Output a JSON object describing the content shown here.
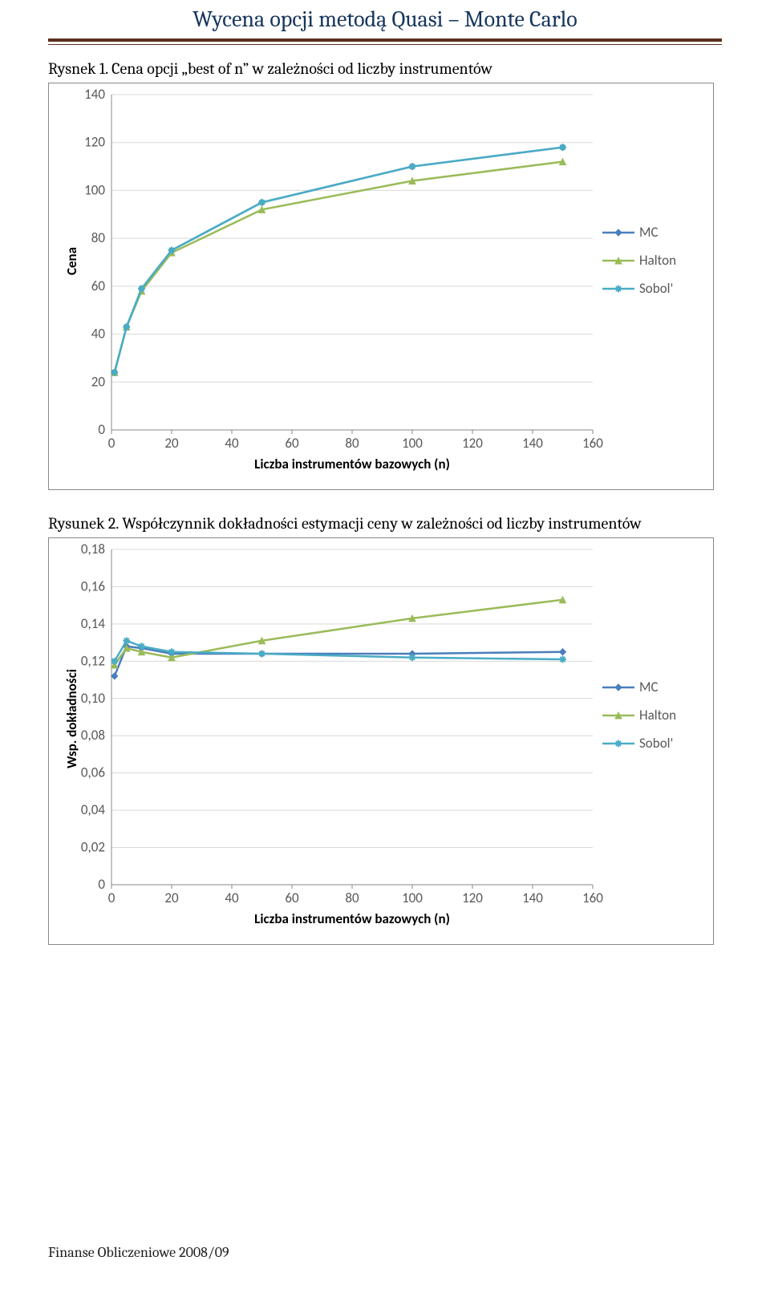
{
  "header": {
    "title": "Wycena opcji metodą Quasi – Monte Carlo"
  },
  "footer": {
    "text": "Finanse Obliczeniowe 2008/09"
  },
  "chart1": {
    "caption": "Rysnek 1. Cena opcji „best of n” w zależności od liczby instrumentów",
    "type": "line",
    "y_label": "Cena",
    "x_label": "Liczba instrumentów bazowych (n)",
    "xlim": [
      0,
      160
    ],
    "ylim": [
      0,
      140
    ],
    "xtick_step": 20,
    "ytick_step": 20,
    "grid_color": "#d9d9d9",
    "axis_color": "#888888",
    "background_color": "#ffffff",
    "line_width": 2.5,
    "marker_size": 8,
    "series": [
      {
        "name": "MC",
        "color": "#4a7ebb",
        "marker": "diamond",
        "x": [
          1,
          5,
          10,
          20,
          50,
          100,
          150
        ],
        "y": [
          24,
          43,
          59,
          75,
          95,
          110,
          118
        ]
      },
      {
        "name": "Halton",
        "color": "#9abb59",
        "marker": "triangle",
        "x": [
          1,
          5,
          10,
          20,
          50,
          100,
          150
        ],
        "y": [
          24,
          43,
          58,
          74,
          92,
          104,
          112
        ]
      },
      {
        "name": "Sobol'",
        "color": "#4aacc5",
        "marker": "star",
        "x": [
          1,
          5,
          10,
          20,
          50,
          100,
          150
        ],
        "y": [
          24,
          43,
          59,
          75,
          95,
          110,
          118
        ]
      }
    ],
    "label_fontsize": 17,
    "title_fontsize": 20
  },
  "chart2": {
    "caption": "Rysunek 2. Współczynnik dokładności estymacji ceny w zależności od liczby instrumentów",
    "type": "line",
    "y_label": "Wsp. dokładności",
    "x_label": "Liczba instrumentów bazowych (n)",
    "xlim": [
      0,
      160
    ],
    "ylim": [
      0,
      0.18
    ],
    "xtick_step": 20,
    "ytick_step": 0.02,
    "grid_color": "#d9d9d9",
    "axis_color": "#888888",
    "background_color": "#ffffff",
    "line_width": 2.5,
    "marker_size": 8,
    "series": [
      {
        "name": "MC",
        "color": "#4a7ebb",
        "marker": "diamond",
        "x": [
          1,
          5,
          10,
          20,
          50,
          100,
          150
        ],
        "y": [
          0.112,
          0.128,
          0.127,
          0.124,
          0.124,
          0.124,
          0.125
        ]
      },
      {
        "name": "Halton",
        "color": "#9abb59",
        "marker": "triangle",
        "x": [
          1,
          5,
          10,
          20,
          50,
          100,
          150
        ],
        "y": [
          0.118,
          0.127,
          0.125,
          0.122,
          0.131,
          0.143,
          0.153
        ]
      },
      {
        "name": "Sobol'",
        "color": "#4aacc5",
        "marker": "star",
        "x": [
          1,
          5,
          10,
          20,
          50,
          100,
          150
        ],
        "y": [
          0.12,
          0.131,
          0.128,
          0.125,
          0.124,
          0.122,
          0.121
        ]
      }
    ],
    "label_fontsize": 17,
    "title_fontsize": 20
  }
}
